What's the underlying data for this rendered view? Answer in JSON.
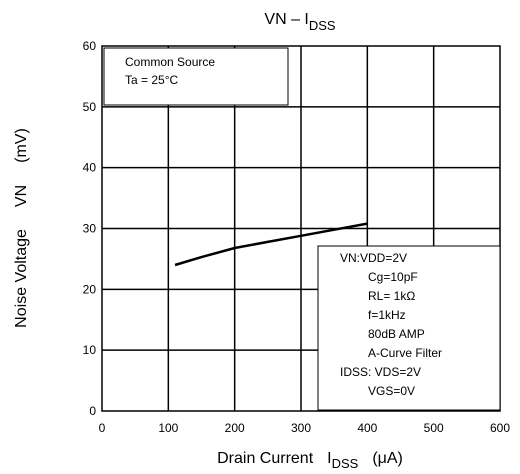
{
  "chart_data": {
    "type": "line",
    "title": "VN – I",
    "title_sub": "DSS",
    "xlabel": "Drain Current",
    "xlabel_symbol": "I",
    "xlabel_symbol_sub": "DSS",
    "xlabel_unit": "(μA)",
    "ylabel": "Noise Voltage",
    "ylabel_symbol": "VN",
    "ylabel_unit": "(mV)",
    "xlim": [
      0,
      600
    ],
    "ylim": [
      0,
      60
    ],
    "x_ticks": [
      0,
      100,
      200,
      300,
      400,
      500,
      600
    ],
    "y_ticks": [
      0,
      10,
      20,
      30,
      40,
      50,
      60
    ],
    "grid": true,
    "series": [
      {
        "x": [
          110,
          150,
          200,
          250,
          300,
          350,
          400
        ],
        "y": [
          24.0,
          25.3,
          26.8,
          27.8,
          28.8,
          29.8,
          30.8
        ]
      }
    ],
    "annotations": {
      "top_left": [
        "Common Source",
        "Ta = 25°C"
      ],
      "bottom_right": [
        "VN:VDD=2V",
        "Cg=10pF",
        "RL= 1kΩ",
        "f=1kHz",
        "80dB AMP",
        "A-Curve Filter",
        "IDSS: VDS=2V",
        "VGS=0V"
      ]
    }
  }
}
